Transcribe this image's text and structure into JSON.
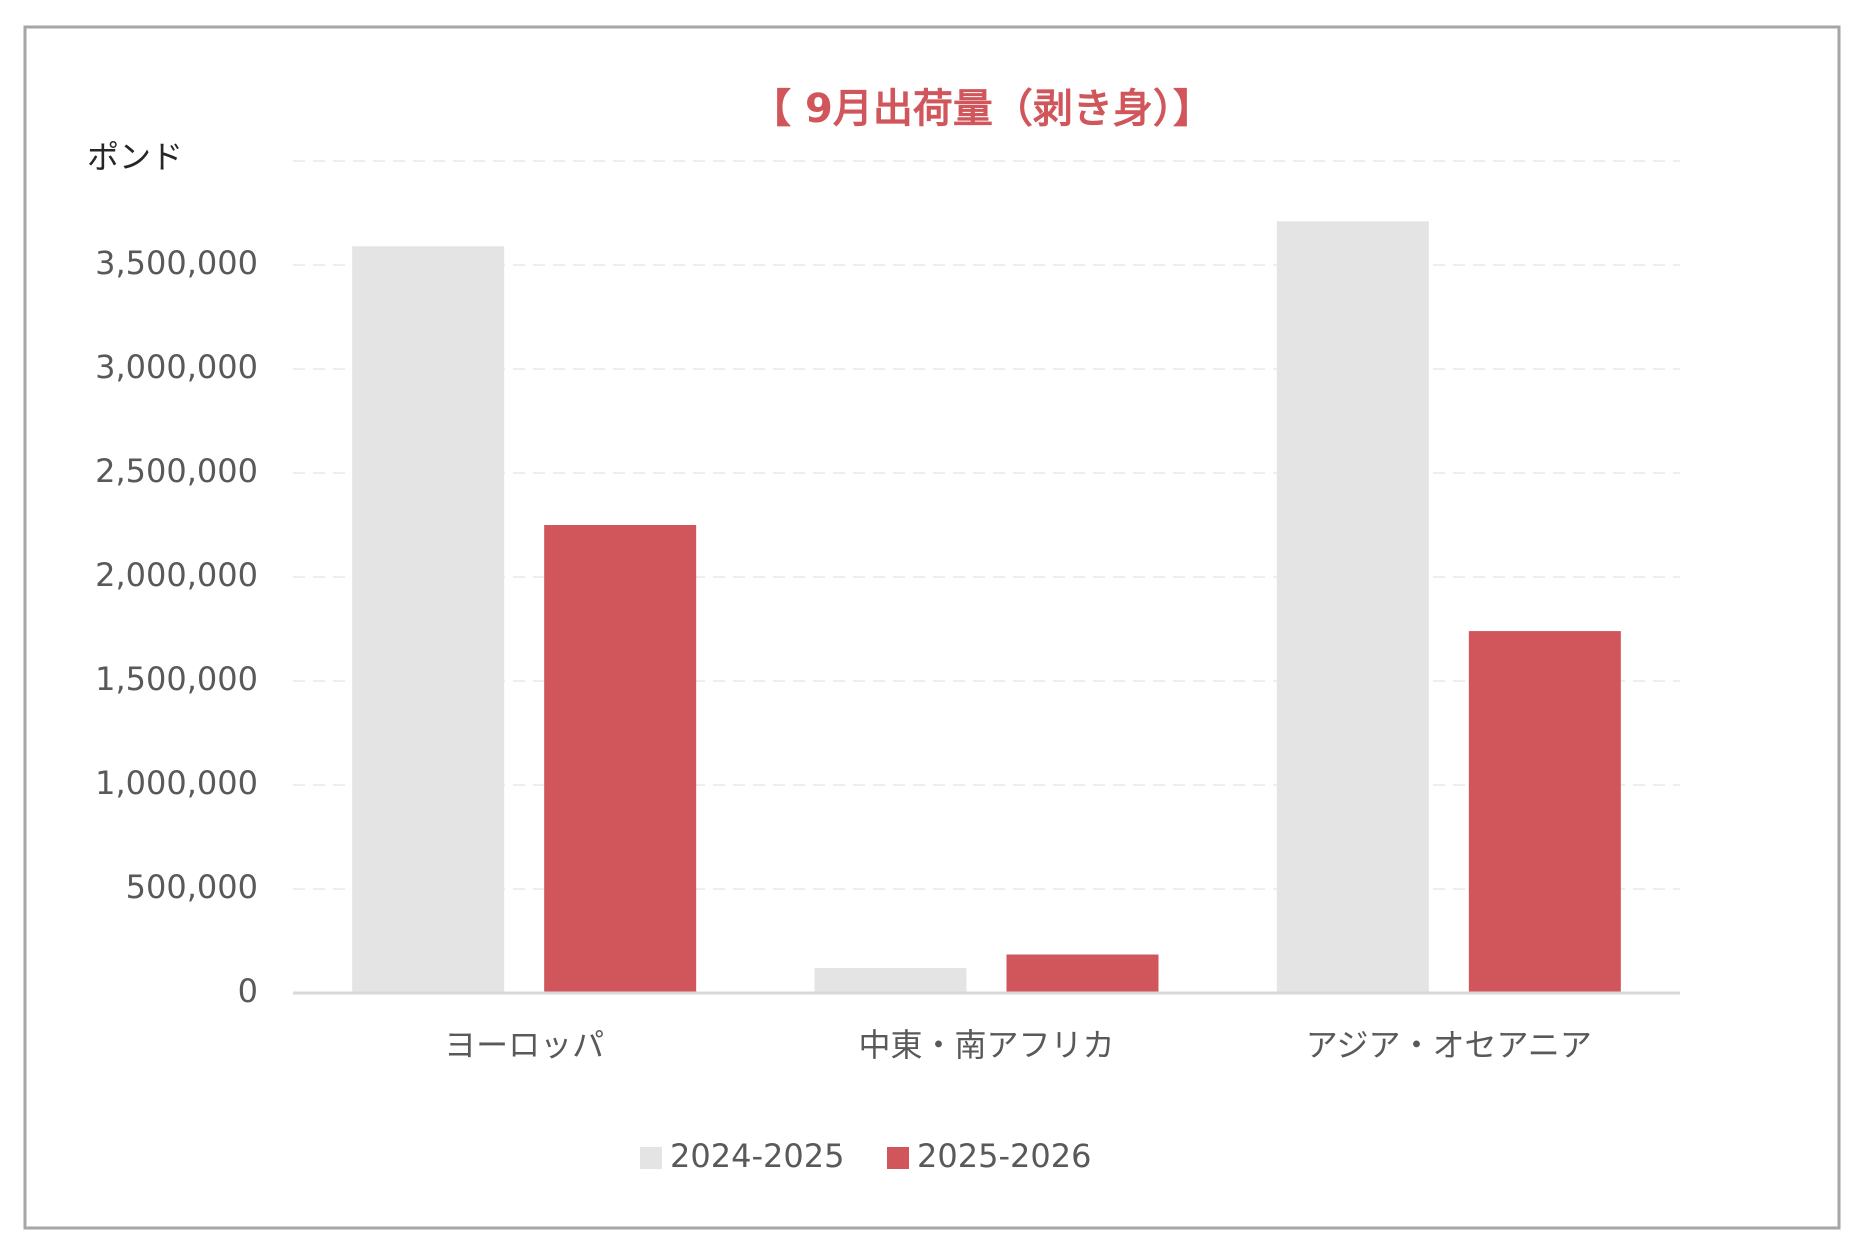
{
  "chart_data": {
    "type": "bar",
    "title": "【 9月出荷量（剥き身）】",
    "y_label": "ポンド",
    "categories": [
      "ヨーロッパ",
      "中東・南アフリカ",
      "アジア・オセアニア"
    ],
    "series": [
      {
        "name": "2024-2025",
        "color": "#e4e4e4",
        "values": [
          3590000,
          120000,
          3710000
        ]
      },
      {
        "name": "2025-2026",
        "color": "#d0565b",
        "values": [
          2250000,
          185000,
          1740000
        ]
      }
    ],
    "ylim": [
      0,
      4000000
    ],
    "yticks": [
      0,
      {
        "value": 500000,
        "label": "500,000"
      },
      {
        "value": 1000000,
        "label": "1,000,000"
      },
      {
        "value": 1500000,
        "label": "1,500,000"
      },
      {
        "value": 2000000,
        "label": "2,000,000"
      },
      {
        "value": 2500000,
        "label": "2,500,000"
      },
      {
        "value": 3000000,
        "label": "3,000,000"
      },
      {
        "value": 3500000,
        "label": "3,500,000"
      }
    ],
    "grid": true,
    "legend": "bottom"
  }
}
